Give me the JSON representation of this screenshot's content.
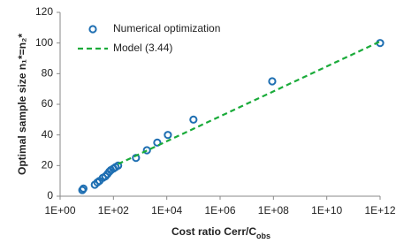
{
  "chart_data": {
    "type": "scatter",
    "x_label": "Cost ratio Cerr/C",
    "x_label_sub": "obs",
    "y_label": "Optimal sample size n₁*=n₂*",
    "xscale": "log",
    "xlim": [
      1,
      1000000000000
    ],
    "xticks": [
      {
        "value": 1,
        "label": "1E+00"
      },
      {
        "value": 100,
        "label": "1E+02"
      },
      {
        "value": 10000,
        "label": "1E+04"
      },
      {
        "value": 1000000,
        "label": "1E+06"
      },
      {
        "value": 100000000,
        "label": "1E+08"
      },
      {
        "value": 10000000000,
        "label": "1E+10"
      },
      {
        "value": 1000000000000,
        "label": "1E+12"
      }
    ],
    "ylim": [
      0,
      120
    ],
    "yticks": [
      0,
      20,
      40,
      60,
      80,
      100,
      120
    ],
    "series": [
      {
        "name": "Numerical optimization",
        "color": "#1f6fb2",
        "marker": "open-circle",
        "x": [
          6.8,
          7.5,
          20,
          25,
          30,
          40,
          50,
          60,
          70,
          80,
          100,
          120,
          150,
          700,
          1800,
          4400,
          11000,
          100000,
          90000000,
          1000000000000
        ],
        "values": [
          4,
          5,
          7.5,
          9,
          10,
          12,
          13,
          14.5,
          16,
          17,
          18,
          19,
          20,
          25,
          30,
          35,
          40,
          50,
          75,
          100
        ]
      },
      {
        "name": "Model (3.44)",
        "color": "#1aab3a",
        "marker": "dashed-line",
        "x": [
          150,
          1000000000000
        ],
        "values": [
          21,
          101
        ]
      }
    ]
  }
}
